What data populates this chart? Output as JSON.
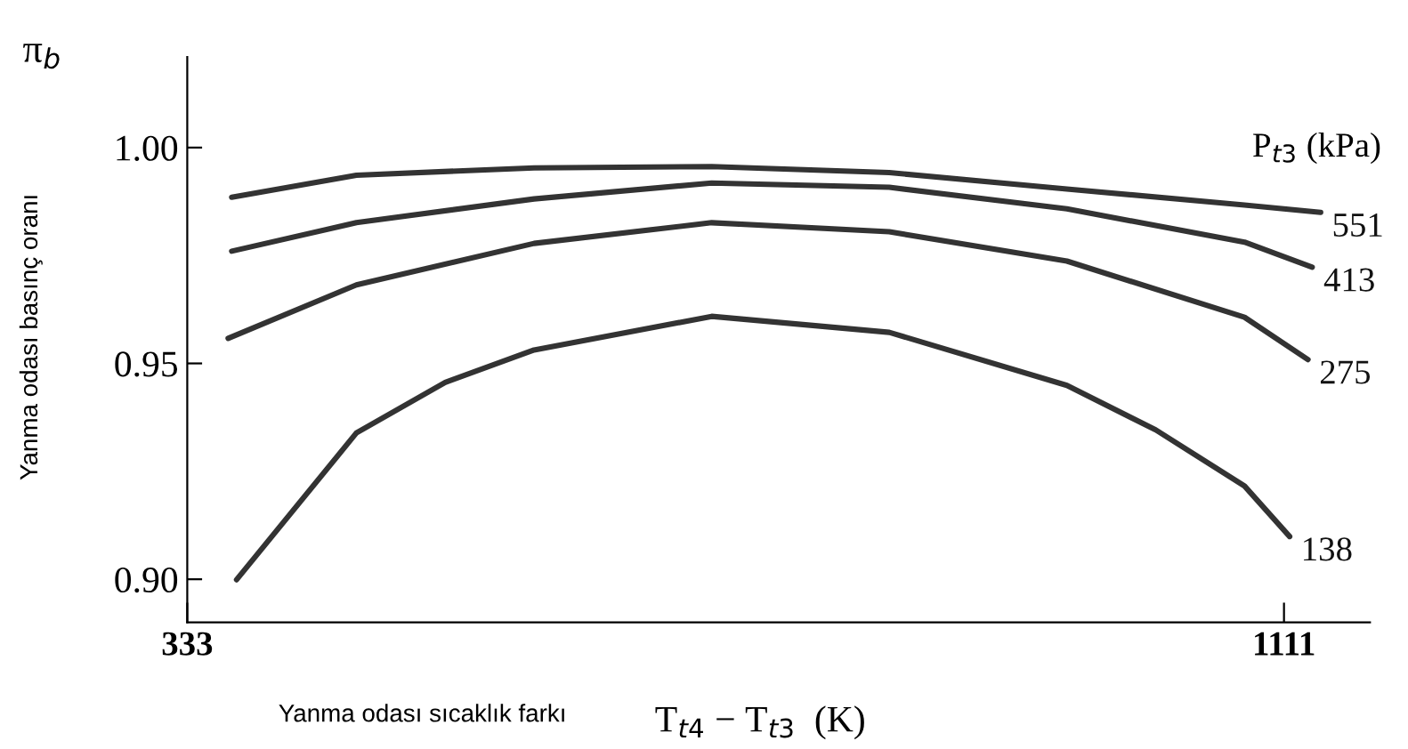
{
  "chart_data": {
    "type": "line",
    "ylabel": "Yanma odası basınç oranı",
    "xlabel": "T$_{t4}$ − T$_{t3}$  (K)",
    "legend_title": "P$_{t3}$ (kPa)",
    "annotations": [
      "π$_{b}$",
      "Yanma odası sıcaklık farkı"
    ],
    "series": [
      {
        "name": "551",
        "color": "#333333",
        "x": [
          364.5,
          453,
          579,
          705,
          831,
          957,
          1083,
          1137
        ],
        "values": [
          0.9885,
          0.9936,
          0.9953,
          0.9956,
          0.9942,
          0.9904,
          0.9867,
          0.985
        ]
      },
      {
        "name": "413",
        "color": "#333333",
        "x": [
          364.5,
          453,
          579,
          705,
          831,
          957,
          1083,
          1131
        ],
        "values": [
          0.976,
          0.9826,
          0.9881,
          0.9918,
          0.9908,
          0.9858,
          0.9781,
          0.9723
        ]
      },
      {
        "name": "275",
        "color": "#333333",
        "x": [
          362,
          453,
          579,
          705,
          831,
          957,
          1083,
          1128
        ],
        "values": [
          0.9558,
          0.9682,
          0.9778,
          0.9826,
          0.9805,
          0.9737,
          0.9607,
          0.9509
        ]
      },
      {
        "name": "138",
        "color": "#333333",
        "x": [
          368,
          453,
          516,
          579,
          705,
          831,
          957,
          1020,
          1083,
          1115
        ],
        "values": [
          0.8999,
          0.9339,
          0.9456,
          0.9531,
          0.9609,
          0.9572,
          0.9449,
          0.9346,
          0.9216,
          0.9099
        ]
      }
    ],
    "xlim": [
      333,
      1172
    ],
    "ylim": [
      0.89,
      1.021
    ],
    "xticks": [
      333,
      1111
    ],
    "yticks": [
      {
        "value": 0.9,
        "label": "0.90"
      },
      {
        "value": 0.95,
        "label": "0.95"
      },
      {
        "value": 1.0,
        "label": "1.00"
      }
    ],
    "grid": false,
    "legend": false,
    "marker": "none",
    "line_style": "solid"
  }
}
